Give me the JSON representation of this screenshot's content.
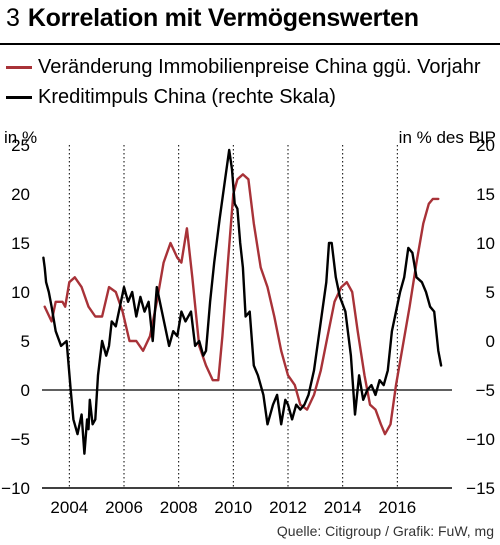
{
  "header": {
    "number": "3",
    "title": "Korrelation mit Vermögenswerten"
  },
  "legend": [
    {
      "label": "Veränderung Immobilienpreise China ggü. Vorjahr",
      "color": "#a83238"
    },
    {
      "label": "Kreditimpuls China (rechte Skala)",
      "color": "#000000"
    }
  ],
  "units": {
    "left": "in %",
    "right": "in % des BIP"
  },
  "source": "Quelle: Citigroup / Grafik: FuW, mg",
  "chart_data": {
    "type": "line",
    "xlim": [
      2003.0,
      2018.0
    ],
    "x_ticks": [
      "2004",
      "2006",
      "2008",
      "2010",
      "2012",
      "2014",
      "2016"
    ],
    "y_left": {
      "ylim": [
        -10,
        25
      ],
      "ticks": [
        "25",
        "20",
        "15",
        "10",
        "5",
        "0",
        "−5",
        "−10"
      ]
    },
    "y_right": {
      "ylim": [
        -15,
        20
      ],
      "ticks": [
        "20",
        "15",
        "10",
        "5",
        "0",
        "−5",
        "−10",
        "−15"
      ]
    },
    "grid": {
      "vertical": true,
      "horizontal": false,
      "zero_line": true
    },
    "series": [
      {
        "name": "Veränderung Immobilienpreise China ggü. Vorjahr",
        "axis": "left",
        "color": "#a83238",
        "x": [
          2003.1,
          2003.35,
          2003.5,
          2003.75,
          2003.85,
          2004.0,
          2004.2,
          2004.45,
          2004.7,
          2004.95,
          2005.2,
          2005.45,
          2005.7,
          2005.95,
          2006.2,
          2006.45,
          2006.7,
          2006.95,
          2007.2,
          2007.45,
          2007.7,
          2007.95,
          2008.1,
          2008.3,
          2008.5,
          2008.75,
          2009.0,
          2009.25,
          2009.45,
          2009.6,
          2009.8,
          2010.0,
          2010.15,
          2010.35,
          2010.55,
          2010.75,
          2011.0,
          2011.25,
          2011.5,
          2011.75,
          2012.0,
          2012.25,
          2012.45,
          2012.7,
          2012.95,
          2013.2,
          2013.45,
          2013.7,
          2013.95,
          2014.15,
          2014.35,
          2014.55,
          2014.8,
          2015.0,
          2015.2,
          2015.4,
          2015.55,
          2015.75,
          2015.95,
          2016.2,
          2016.45,
          2016.7,
          2016.95,
          2017.15,
          2017.3,
          2017.5
        ],
        "y": [
          8.5,
          7.0,
          9.0,
          9.0,
          8.5,
          11.0,
          11.5,
          10.5,
          8.5,
          7.5,
          7.5,
          10.5,
          10.0,
          8.0,
          5.0,
          5.0,
          4.0,
          5.5,
          9.0,
          13.0,
          15.0,
          13.5,
          13.0,
          16.5,
          11.5,
          4.5,
          2.5,
          1.0,
          1.0,
          5.5,
          13.0,
          20.0,
          21.5,
          22.0,
          21.5,
          17.0,
          12.5,
          10.5,
          7.5,
          4.0,
          1.5,
          0.5,
          -1.5,
          -2.0,
          -0.5,
          2.0,
          5.5,
          9.0,
          10.5,
          11.0,
          10.0,
          6.0,
          1.5,
          -1.5,
          -2.0,
          -3.5,
          -4.5,
          -3.5,
          0.5,
          4.5,
          8.5,
          13.0,
          17.0,
          19.0,
          19.5,
          19.5
        ]
      },
      {
        "name": "Kreditimpuls China (rechte Skala)",
        "axis": "right",
        "color": "#000000",
        "x": [
          2003.05,
          2003.1,
          2003.15,
          2003.25,
          2003.35,
          2003.5,
          2003.7,
          2003.9,
          2004.05,
          2004.15,
          2004.3,
          2004.45,
          2004.55,
          2004.65,
          2004.7,
          2004.75,
          2004.85,
          2004.95,
          2005.05,
          2005.2,
          2005.35,
          2005.45,
          2005.55,
          2005.7,
          2005.85,
          2006.0,
          2006.15,
          2006.3,
          2006.45,
          2006.6,
          2006.75,
          2006.9,
          2007.05,
          2007.2,
          2007.35,
          2007.5,
          2007.65,
          2007.8,
          2007.95,
          2008.1,
          2008.25,
          2008.45,
          2008.6,
          2008.75,
          2008.9,
          2009.0,
          2009.15,
          2009.3,
          2009.5,
          2009.7,
          2009.85,
          2009.95,
          2010.05,
          2010.15,
          2010.25,
          2010.35,
          2010.45,
          2010.6,
          2010.75,
          2010.9,
          2011.1,
          2011.25,
          2011.45,
          2011.6,
          2011.75,
          2011.9,
          2012.0,
          2012.15,
          2012.3,
          2012.45,
          2012.6,
          2012.75,
          2012.95,
          2013.1,
          2013.25,
          2013.4,
          2013.5,
          2013.6,
          2013.75,
          2013.9,
          2014.1,
          2014.3,
          2014.45,
          2014.6,
          2014.75,
          2014.9,
          2015.05,
          2015.2,
          2015.35,
          2015.5,
          2015.65,
          2015.8,
          2015.95,
          2016.1,
          2016.25,
          2016.4,
          2016.55,
          2016.7,
          2016.9,
          2017.05,
          2017.2,
          2017.35,
          2017.5,
          2017.6
        ],
        "y": [
          8.5,
          7.5,
          6.0,
          5.0,
          3.5,
          1.0,
          -0.5,
          0.0,
          -5.0,
          -8.0,
          -9.5,
          -7.5,
          -11.5,
          -8.0,
          -9.0,
          -6.0,
          -8.5,
          -8.0,
          -3.5,
          0.0,
          -1.5,
          -0.5,
          2.0,
          1.5,
          3.5,
          5.5,
          4.0,
          5.0,
          2.5,
          4.5,
          3.0,
          4.0,
          0.0,
          5.5,
          3.5,
          1.5,
          -0.5,
          1.0,
          0.5,
          3.0,
          2.0,
          3.0,
          -0.5,
          0.0,
          -1.5,
          -1.0,
          4.0,
          8.0,
          12.5,
          16.5,
          19.5,
          17.5,
          14.0,
          13.5,
          10.0,
          7.5,
          2.5,
          3.0,
          -2.5,
          -3.5,
          -5.5,
          -8.5,
          -6.5,
          -5.5,
          -8.5,
          -6.0,
          -6.5,
          -8.0,
          -6.5,
          -7.0,
          -6.5,
          -5.5,
          -3.0,
          0.0,
          3.0,
          6.0,
          10.0,
          10.0,
          6.5,
          4.5,
          3.0,
          -1.5,
          -7.5,
          -3.5,
          -6.0,
          -5.0,
          -4.5,
          -5.5,
          -4.0,
          -4.5,
          -3.0,
          1.0,
          3.0,
          5.0,
          6.5,
          9.5,
          9.0,
          6.5,
          6.0,
          5.0,
          3.5,
          3.0,
          -1.0,
          -2.5
        ]
      }
    ]
  }
}
